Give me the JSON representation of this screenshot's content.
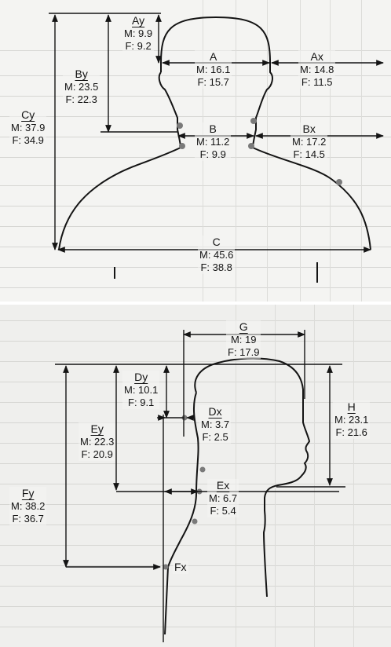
{
  "top_figure": {
    "measurements": [
      {
        "id": "ay",
        "name": "Ay",
        "male": "M: 9.9",
        "female": "F: 9.2"
      },
      {
        "id": "by",
        "name": "By",
        "male": "M: 23.5",
        "female": "F: 22.3"
      },
      {
        "id": "cy",
        "name": "Cy",
        "male": "M: 37.9",
        "female": "F: 34.9"
      },
      {
        "id": "a",
        "name": "A",
        "male": "M: 16.1",
        "female": "F: 15.7"
      },
      {
        "id": "ax",
        "name": "Ax",
        "male": "M: 14.8",
        "female": "F: 11.5"
      },
      {
        "id": "b",
        "name": "B",
        "male": "M: 11.2",
        "female": "F: 9.9"
      },
      {
        "id": "bx",
        "name": "Bx",
        "male": "M: 17.2",
        "female": "F: 14.5"
      },
      {
        "id": "c",
        "name": "C",
        "male": "M: 45.6",
        "female": "F: 38.8"
      }
    ]
  },
  "bottom_figure": {
    "measurements": [
      {
        "id": "g",
        "name": "G",
        "male": "M: 19",
        "female": "F: 17.9"
      },
      {
        "id": "dy",
        "name": "Dy",
        "male": "M: 10.1",
        "female": "F: 9.1"
      },
      {
        "id": "dx",
        "name": "Dx",
        "male": "M: 3.7",
        "female": "F: 2.5"
      },
      {
        "id": "h",
        "name": "H",
        "male": "M: 23.1",
        "female": "F: 21.6"
      },
      {
        "id": "ey",
        "name": "Ey",
        "male": "M: 22.3",
        "female": "F: 20.9"
      },
      {
        "id": "ex",
        "name": "Ex",
        "male": "M: 6.7",
        "female": "F: 5.4"
      },
      {
        "id": "fy",
        "name": "Fy",
        "male": "M: 38.2",
        "female": "F: 36.7"
      },
      {
        "id": "fx",
        "name": "Fx"
      }
    ]
  },
  "colors": {
    "ink": "#141414",
    "marker": "#7a7a7a",
    "background": "#f2f2f0"
  }
}
